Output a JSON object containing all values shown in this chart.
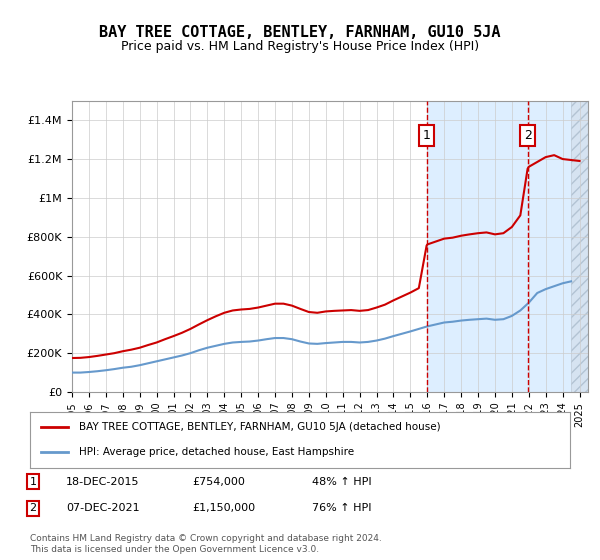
{
  "title": "BAY TREE COTTAGE, BENTLEY, FARNHAM, GU10 5JA",
  "subtitle": "Price paid vs. HM Land Registry's House Price Index (HPI)",
  "legend_line1": "BAY TREE COTTAGE, BENTLEY, FARNHAM, GU10 5JA (detached house)",
  "legend_line2": "HPI: Average price, detached house, East Hampshire",
  "transactions": [
    {
      "label": "1",
      "date": "18-DEC-2015",
      "price": "£754,000",
      "hpi_pct": "48% ↑ HPI",
      "year": 2015.96
    },
    {
      "label": "2",
      "date": "07-DEC-2021",
      "price": "£1,150,000",
      "hpi_pct": "76% ↑ HPI",
      "year": 2021.93
    }
  ],
  "footnote1": "Contains HM Land Registry data © Crown copyright and database right 2024.",
  "footnote2": "This data is licensed under the Open Government Licence v3.0.",
  "red_color": "#cc0000",
  "blue_color": "#6699cc",
  "shade_color": "#ddeeff",
  "hatch_color": "#ccddee",
  "ylim": [
    0,
    1500000
  ],
  "xlim_start": 1995.0,
  "xlim_end": 2025.5,
  "hpi_line": {
    "years": [
      1995.0,
      1995.5,
      1996.0,
      1996.5,
      1997.0,
      1997.5,
      1998.0,
      1998.5,
      1999.0,
      1999.5,
      2000.0,
      2000.5,
      2001.0,
      2001.5,
      2002.0,
      2002.5,
      2003.0,
      2003.5,
      2004.0,
      2004.5,
      2005.0,
      2005.5,
      2006.0,
      2006.5,
      2007.0,
      2007.5,
      2008.0,
      2008.5,
      2009.0,
      2009.5,
      2010.0,
      2010.5,
      2011.0,
      2011.5,
      2012.0,
      2012.5,
      2013.0,
      2013.5,
      2014.0,
      2014.5,
      2015.0,
      2015.5,
      2016.0,
      2016.5,
      2017.0,
      2017.5,
      2018.0,
      2018.5,
      2019.0,
      2019.5,
      2020.0,
      2020.5,
      2021.0,
      2021.5,
      2022.0,
      2022.5,
      2023.0,
      2023.5,
      2024.0,
      2024.5
    ],
    "values": [
      100000,
      100000,
      103000,
      107000,
      112000,
      118000,
      125000,
      130000,
      138000,
      148000,
      158000,
      168000,
      178000,
      188000,
      200000,
      215000,
      228000,
      238000,
      248000,
      255000,
      258000,
      260000,
      265000,
      272000,
      278000,
      278000,
      272000,
      260000,
      250000,
      248000,
      252000,
      255000,
      258000,
      258000,
      255000,
      258000,
      265000,
      275000,
      288000,
      300000,
      312000,
      325000,
      338000,
      348000,
      358000,
      362000,
      368000,
      372000,
      375000,
      378000,
      372000,
      375000,
      392000,
      420000,
      460000,
      510000,
      530000,
      545000,
      560000,
      570000
    ]
  },
  "red_line": {
    "years": [
      1995.0,
      1995.5,
      1996.0,
      1996.5,
      1997.0,
      1997.5,
      1998.0,
      1998.5,
      1999.0,
      1999.5,
      2000.0,
      2000.5,
      2001.0,
      2001.5,
      2002.0,
      2002.5,
      2003.0,
      2003.5,
      2004.0,
      2004.5,
      2005.0,
      2005.5,
      2006.0,
      2006.5,
      2007.0,
      2007.5,
      2008.0,
      2008.5,
      2009.0,
      2009.5,
      2010.0,
      2010.5,
      2011.0,
      2011.5,
      2012.0,
      2012.5,
      2013.0,
      2013.5,
      2014.0,
      2014.5,
      2015.0,
      2015.5,
      2015.96,
      2016.0,
      2016.5,
      2017.0,
      2017.5,
      2018.0,
      2018.5,
      2019.0,
      2019.5,
      2020.0,
      2020.5,
      2021.0,
      2021.5,
      2021.93,
      2022.0,
      2022.5,
      2023.0,
      2023.5,
      2024.0,
      2024.5,
      2025.0
    ],
    "values": [
      175000,
      176000,
      180000,
      186000,
      193000,
      200000,
      210000,
      218000,
      228000,
      242000,
      255000,
      272000,
      288000,
      305000,
      325000,
      348000,
      370000,
      390000,
      408000,
      420000,
      425000,
      428000,
      435000,
      445000,
      455000,
      455000,
      445000,
      428000,
      412000,
      408000,
      415000,
      418000,
      420000,
      422000,
      418000,
      422000,
      435000,
      450000,
      472000,
      492000,
      512000,
      535000,
      754000,
      760000,
      775000,
      790000,
      795000,
      805000,
      812000,
      818000,
      822000,
      812000,
      818000,
      850000,
      910000,
      1150000,
      1160000,
      1185000,
      1210000,
      1220000,
      1200000,
      1195000,
      1190000
    ]
  }
}
